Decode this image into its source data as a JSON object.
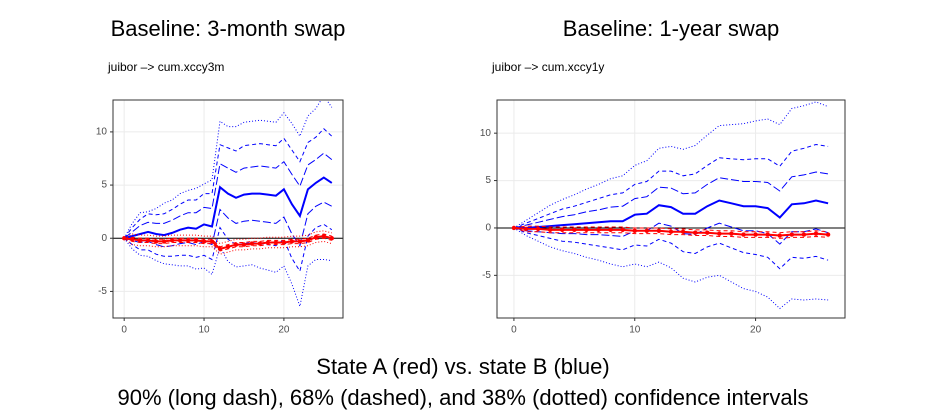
{
  "chart_data": [
    {
      "type": "line",
      "title": "Baseline: 3-month swap",
      "subtitle": "juibor –> cum.xccy3m",
      "x": [
        0,
        1,
        2,
        3,
        4,
        5,
        6,
        7,
        8,
        9,
        10,
        11,
        12,
        13,
        14,
        15,
        16,
        17,
        18,
        19,
        20,
        21,
        22,
        23,
        24,
        25,
        26
      ],
      "xlim": [
        -1.4,
        27.4
      ],
      "xticks": [
        0,
        10,
        20
      ],
      "ylim": [
        -7.5,
        13
      ],
      "yticks": [
        -5,
        0,
        5,
        10
      ],
      "grid": true,
      "hline": 0,
      "series": [
        {
          "color": "#0000ff",
          "dash": "dotted",
          "values": [
            0,
            1.4,
            2.4,
            2.5,
            2.8,
            3.3,
            3.6,
            4.2,
            4.5,
            4.7,
            5.1,
            5.5,
            11.0,
            10.5,
            10.5,
            10.9,
            11.0,
            11.1,
            11.0,
            10.9,
            11.8,
            10.8,
            9.6,
            11.5,
            12.2,
            13.4,
            12.3
          ]
        },
        {
          "color": "#0000ff",
          "dash": "dotted",
          "values": [
            0,
            -1.0,
            -1.6,
            -1.7,
            -2.1,
            -2.4,
            -2.5,
            -2.6,
            -2.6,
            -2.9,
            -2.8,
            -3.4,
            -0.8,
            -2.2,
            -2.7,
            -2.6,
            -2.5,
            -2.8,
            -3.0,
            -3.2,
            -2.6,
            -4.3,
            -6.4,
            -2.6,
            -2.0,
            -2.0,
            -2.1
          ]
        },
        {
          "color": "#0000ff",
          "dash": "dashed",
          "values": [
            0,
            1.0,
            1.8,
            2.3,
            2.2,
            2.3,
            2.7,
            3.2,
            3.6,
            3.6,
            4.2,
            4.2,
            8.8,
            8.5,
            8.2,
            8.7,
            8.8,
            8.9,
            8.8,
            8.7,
            9.4,
            8.3,
            7.2,
            9.0,
            9.5,
            10.3,
            9.6
          ]
        },
        {
          "color": "#0000ff",
          "dash": "dashed",
          "values": [
            0,
            -0.6,
            -1.1,
            -1.1,
            -1.5,
            -1.7,
            -1.7,
            -1.6,
            -1.6,
            -1.8,
            -1.6,
            -2.0,
            1.0,
            -0.1,
            -0.6,
            -0.5,
            -0.4,
            -0.5,
            -0.6,
            -0.7,
            -0.1,
            -1.9,
            -3.1,
            0.2,
            1.0,
            1.3,
            0.8
          ]
        },
        {
          "color": "#0000ff",
          "dash": "longdash",
          "values": [
            0,
            0.6,
            1.2,
            1.5,
            1.4,
            1.4,
            1.7,
            2.1,
            2.4,
            2.4,
            2.9,
            2.8,
            7.0,
            6.6,
            6.2,
            6.6,
            6.7,
            6.8,
            6.7,
            6.6,
            7.2,
            6.0,
            4.9,
            6.9,
            7.4,
            8.0,
            7.4
          ]
        },
        {
          "color": "#0000ff",
          "dash": "longdash",
          "values": [
            0,
            -0.2,
            -0.4,
            -0.3,
            -0.6,
            -0.8,
            -0.7,
            -0.5,
            -0.4,
            -0.6,
            -0.3,
            -0.6,
            2.7,
            1.9,
            1.4,
            1.6,
            1.7,
            1.6,
            1.5,
            1.4,
            2.0,
            0.4,
            -0.7,
            2.3,
            3.0,
            3.4,
            3.0
          ]
        },
        {
          "color": "#0000ff",
          "dash": "solid",
          "values": [
            0,
            0.2,
            0.4,
            0.6,
            0.4,
            0.3,
            0.5,
            0.8,
            1.0,
            0.9,
            1.3,
            1.1,
            4.8,
            4.2,
            3.8,
            4.1,
            4.2,
            4.2,
            4.1,
            4.0,
            4.6,
            3.2,
            2.1,
            4.6,
            5.2,
            5.7,
            5.2
          ]
        },
        {
          "color": "#ff0000",
          "dash": "dotted",
          "values": [
            0,
            0.4,
            0.3,
            0.3,
            0.2,
            0.2,
            0.3,
            0.3,
            0.3,
            0.3,
            0.2,
            0.2,
            -0.5,
            -0.3,
            -0.1,
            -0.1,
            0,
            0,
            0.1,
            0.1,
            0.1,
            0.2,
            0.2,
            0.3,
            0.6,
            0.7,
            0.5
          ]
        },
        {
          "color": "#ff0000",
          "dash": "dotted",
          "values": [
            0,
            -0.6,
            -0.7,
            -0.7,
            -0.8,
            -0.8,
            -0.7,
            -0.7,
            -0.7,
            -0.7,
            -0.8,
            -0.8,
            -1.5,
            -1.3,
            -1.1,
            -1.1,
            -1.0,
            -1.0,
            -0.9,
            -0.9,
            -0.9,
            -0.8,
            -0.8,
            -0.7,
            -0.4,
            -0.3,
            -0.5
          ]
        },
        {
          "color": "#ff0000",
          "dash": "dashed",
          "values": [
            0,
            0.1,
            0,
            0,
            -0.1,
            -0.1,
            0,
            0,
            0,
            0,
            -0.1,
            -0.1,
            -0.8,
            -0.6,
            -0.4,
            -0.4,
            -0.3,
            -0.3,
            -0.2,
            -0.2,
            -0.2,
            -0.1,
            -0.1,
            0,
            0.3,
            0.4,
            0.2
          ]
        },
        {
          "color": "#ff0000",
          "dash": "dashed",
          "values": [
            0,
            -0.3,
            -0.4,
            -0.4,
            -0.5,
            -0.5,
            -0.4,
            -0.4,
            -0.4,
            -0.4,
            -0.5,
            -0.5,
            -1.2,
            -1.0,
            -0.8,
            -0.8,
            -0.7,
            -0.7,
            -0.6,
            -0.6,
            -0.6,
            -0.5,
            -0.5,
            -0.4,
            -0.1,
            0,
            -0.2
          ]
        },
        {
          "color": "#ff0000",
          "dash": "solid",
          "markers": true,
          "values": [
            0,
            -0.1,
            -0.2,
            -0.2,
            -0.3,
            -0.3,
            -0.2,
            -0.2,
            -0.2,
            -0.2,
            -0.3,
            -0.3,
            -1.0,
            -0.8,
            -0.6,
            -0.6,
            -0.5,
            -0.5,
            -0.4,
            -0.4,
            -0.4,
            -0.3,
            -0.3,
            -0.2,
            0.1,
            0.2,
            0.0
          ]
        }
      ]
    },
    {
      "type": "line",
      "title": "Baseline: 1-year swap",
      "subtitle": "juibor –> cum.xccy1y",
      "x": [
        0,
        1,
        2,
        3,
        4,
        5,
        6,
        7,
        8,
        9,
        10,
        11,
        12,
        13,
        14,
        15,
        16,
        17,
        18,
        19,
        20,
        21,
        22,
        23,
        24,
        25,
        26
      ],
      "xlim": [
        -1.4,
        27.4
      ],
      "xticks": [
        0,
        10,
        20
      ],
      "ylim": [
        -9.5,
        13.5
      ],
      "yticks": [
        -5,
        0,
        5,
        10
      ],
      "grid": true,
      "hline": 0,
      "series": [
        {
          "color": "#0000ff",
          "dash": "dotted",
          "values": [
            0,
            0.8,
            1.6,
            2.4,
            3.0,
            3.5,
            4.1,
            4.6,
            5.2,
            5.5,
            6.6,
            7.1,
            8.4,
            8.6,
            8.3,
            8.7,
            9.8,
            10.8,
            10.9,
            11.0,
            11.3,
            11.5,
            10.9,
            12.6,
            12.9,
            13.3,
            12.8
          ]
        },
        {
          "color": "#0000ff",
          "dash": "dotted",
          "values": [
            0,
            -0.8,
            -1.4,
            -2.0,
            -2.4,
            -2.7,
            -3.1,
            -3.4,
            -3.8,
            -4.1,
            -3.8,
            -4.1,
            -3.6,
            -4.2,
            -5.3,
            -5.7,
            -5.2,
            -5.0,
            -5.7,
            -6.4,
            -6.7,
            -7.3,
            -8.5,
            -7.5,
            -7.6,
            -7.5,
            -7.6
          ]
        },
        {
          "color": "#0000ff",
          "dash": "dashed",
          "values": [
            0,
            0.5,
            1.0,
            1.5,
            2.0,
            2.3,
            2.7,
            3.1,
            3.5,
            3.7,
            4.6,
            4.9,
            6.0,
            6.0,
            5.5,
            5.7,
            6.6,
            7.4,
            7.3,
            7.2,
            7.3,
            7.3,
            6.5,
            8.1,
            8.4,
            8.8,
            8.6
          ]
        },
        {
          "color": "#0000ff",
          "dash": "dashed",
          "values": [
            0,
            -0.5,
            -0.8,
            -1.1,
            -1.4,
            -1.5,
            -1.7,
            -1.9,
            -2.1,
            -2.3,
            -1.8,
            -1.9,
            -1.2,
            -1.6,
            -2.5,
            -2.7,
            -2.0,
            -1.6,
            -2.1,
            -2.6,
            -2.8,
            -3.1,
            -4.3,
            -3.1,
            -3.2,
            -3.0,
            -3.4
          ]
        },
        {
          "color": "#0000ff",
          "dash": "longdash",
          "values": [
            0,
            0.3,
            0.6,
            0.9,
            1.2,
            1.4,
            1.7,
            1.9,
            2.2,
            2.3,
            3.1,
            3.3,
            4.3,
            4.2,
            3.6,
            3.7,
            4.6,
            5.3,
            5.1,
            4.9,
            4.9,
            4.8,
            3.9,
            5.4,
            5.6,
            5.9,
            5.7
          ]
        },
        {
          "color": "#0000ff",
          "dash": "longdash",
          "values": [
            0,
            -0.3,
            -0.4,
            -0.5,
            -0.6,
            -0.6,
            -0.7,
            -0.7,
            -0.8,
            -0.9,
            -0.3,
            -0.3,
            0.5,
            0.2,
            -0.6,
            -0.7,
            0,
            0.5,
            0.1,
            -0.3,
            -0.3,
            -0.6,
            -1.7,
            -0.4,
            -0.4,
            -0.1,
            -0.5
          ]
        },
        {
          "color": "#0000ff",
          "dash": "solid",
          "values": [
            0,
            0,
            0.1,
            0.2,
            0.3,
            0.4,
            0.5,
            0.6,
            0.7,
            0.7,
            1.4,
            1.5,
            2.4,
            2.2,
            1.5,
            1.5,
            2.3,
            2.9,
            2.6,
            2.3,
            2.3,
            2.1,
            1.1,
            2.5,
            2.6,
            2.9,
            2.6
          ]
        },
        {
          "color": "#ff0000",
          "dash": "dashed",
          "values": [
            0,
            0.2,
            0.2,
            0.1,
            0.1,
            0.1,
            0.1,
            0.1,
            0.1,
            0.1,
            0,
            0,
            0,
            -0.1,
            -0.1,
            -0.2,
            -0.2,
            -0.3,
            -0.3,
            -0.4,
            -0.4,
            -0.4,
            -0.5,
            -0.4,
            -0.4,
            -0.3,
            -0.4
          ]
        },
        {
          "color": "#ff0000",
          "dash": "dashed",
          "values": [
            0,
            -0.4,
            -0.4,
            -0.5,
            -0.5,
            -0.5,
            -0.5,
            -0.5,
            -0.5,
            -0.5,
            -0.6,
            -0.6,
            -0.6,
            -0.7,
            -0.7,
            -0.8,
            -0.8,
            -0.9,
            -0.9,
            -1.0,
            -1.0,
            -1.0,
            -1.1,
            -1.0,
            -1.0,
            -0.9,
            -1.0
          ]
        },
        {
          "color": "#ff0000",
          "dash": "solid",
          "markers": true,
          "values": [
            0,
            -0.1,
            -0.1,
            -0.2,
            -0.2,
            -0.2,
            -0.2,
            -0.2,
            -0.2,
            -0.2,
            -0.3,
            -0.3,
            -0.3,
            -0.4,
            -0.4,
            -0.5,
            -0.5,
            -0.6,
            -0.6,
            -0.7,
            -0.7,
            -0.7,
            -0.8,
            -0.7,
            -0.7,
            -0.6,
            -0.7
          ]
        }
      ]
    }
  ],
  "caption": [
    "State A (red) vs. state B (blue)",
    "90% (long dash), 68% (dashed), and 38% (dotted) confidence intervals"
  ]
}
